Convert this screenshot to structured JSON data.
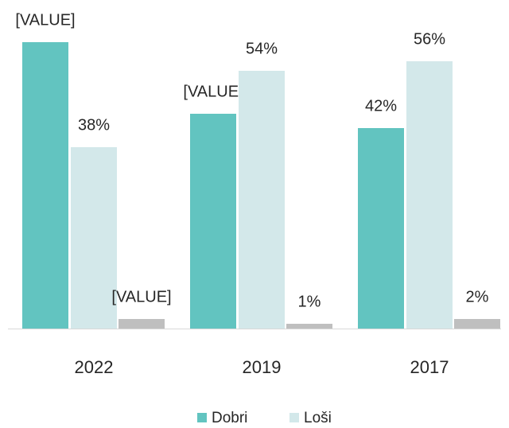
{
  "chart_data": {
    "type": "bar",
    "categories": [
      "2022",
      "2019",
      "2017"
    ],
    "series": [
      {
        "name": "Dobri",
        "color": "#62c4c0",
        "values": [
          60,
          45,
          42
        ],
        "value_labels": [
          "[VALUE]",
          "[VALUE]",
          "42%"
        ]
      },
      {
        "name": "Loši",
        "color": "#d3e8ea",
        "values": [
          38,
          54,
          56
        ],
        "value_labels": [
          "38%",
          "54%",
          "56%"
        ]
      },
      {
        "color": "#bfbfbf",
        "values": [
          2,
          1,
          2
        ],
        "value_labels": [
          "[VALUE]",
          "1%",
          "2%"
        ]
      }
    ],
    "legend": "bottom"
  }
}
